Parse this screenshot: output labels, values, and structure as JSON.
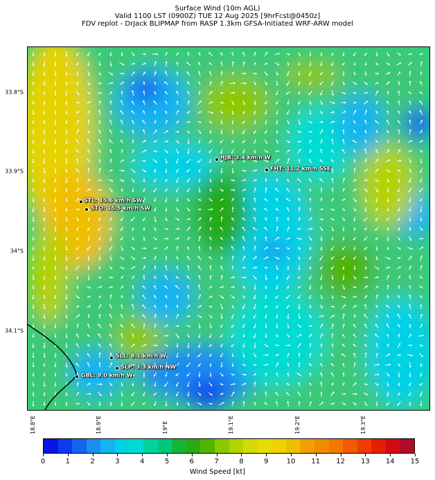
{
  "title_lines": [
    "Surface Wind (10m AGL)",
    "Valid 1100 LST (0900Z) TUE 12 Aug 2025 [9hrFcst@0450z]",
    "FDV replot - DrJack BLIPMAP from RASP 1.3km GFSA-Initiated WRF-ARW model"
  ],
  "lat_labels": [
    "33.8°S",
    "33.9°S",
    "34°S",
    "34.1°S"
  ],
  "lon_labels": [
    "18.8°E",
    "18.9°E",
    "19°E",
    "19.1°E",
    "19.2°E",
    "19.3°E"
  ],
  "stations": [
    {
      "id": "HJB",
      "label": "HJB: 3.4 km/h W",
      "speed_kmh": 3.4,
      "dir": "W"
    },
    {
      "id": "FHT",
      "label": "FHT: 11.2 km/h SSE",
      "speed_kmh": 11.2,
      "dir": "SSE"
    },
    {
      "id": "STL",
      "label": "STL: 15.6 km/h SW",
      "speed_kmh": 15.6,
      "dir": "SW"
    },
    {
      "id": "STO",
      "label": "STO: 15.5 km/h SW",
      "speed_kmh": 15.5,
      "dir": "SW"
    },
    {
      "id": "SLL",
      "label": "SLL: 8.1 km/h W",
      "speed_kmh": 8.1,
      "dir": "W"
    },
    {
      "id": "SLP",
      "label": "SLP: 3.3 km/h NW",
      "speed_kmh": 3.3,
      "dir": "NW"
    },
    {
      "id": "GBL",
      "label": "GBL: 9.0 km/h W",
      "speed_kmh": 9.0,
      "dir": "W"
    }
  ],
  "colorbar": {
    "label": "Wind Speed [kt]",
    "ticks": [
      "0",
      "1",
      "2",
      "3",
      "4",
      "5",
      "6",
      "7",
      "8",
      "9",
      "10",
      "11",
      "12",
      "13",
      "14",
      "15"
    ],
    "colors": [
      "#0a14e6",
      "#0a3cf0",
      "#1464f0",
      "#1e8cf0",
      "#14b4f0",
      "#00d2e6",
      "#00dcd2",
      "#00d2a0",
      "#00c878",
      "#14b43c",
      "#28aa14",
      "#50b400",
      "#8cc800",
      "#b4d200",
      "#d2dc00",
      "#e6dc00",
      "#f0d200",
      "#f0be00",
      "#f0a000",
      "#f08c00",
      "#f07800",
      "#f05a00",
      "#f03c00",
      "#e61e00",
      "#d20a14",
      "#b40a28"
    ],
    "min": 0,
    "max": 15
  }
}
